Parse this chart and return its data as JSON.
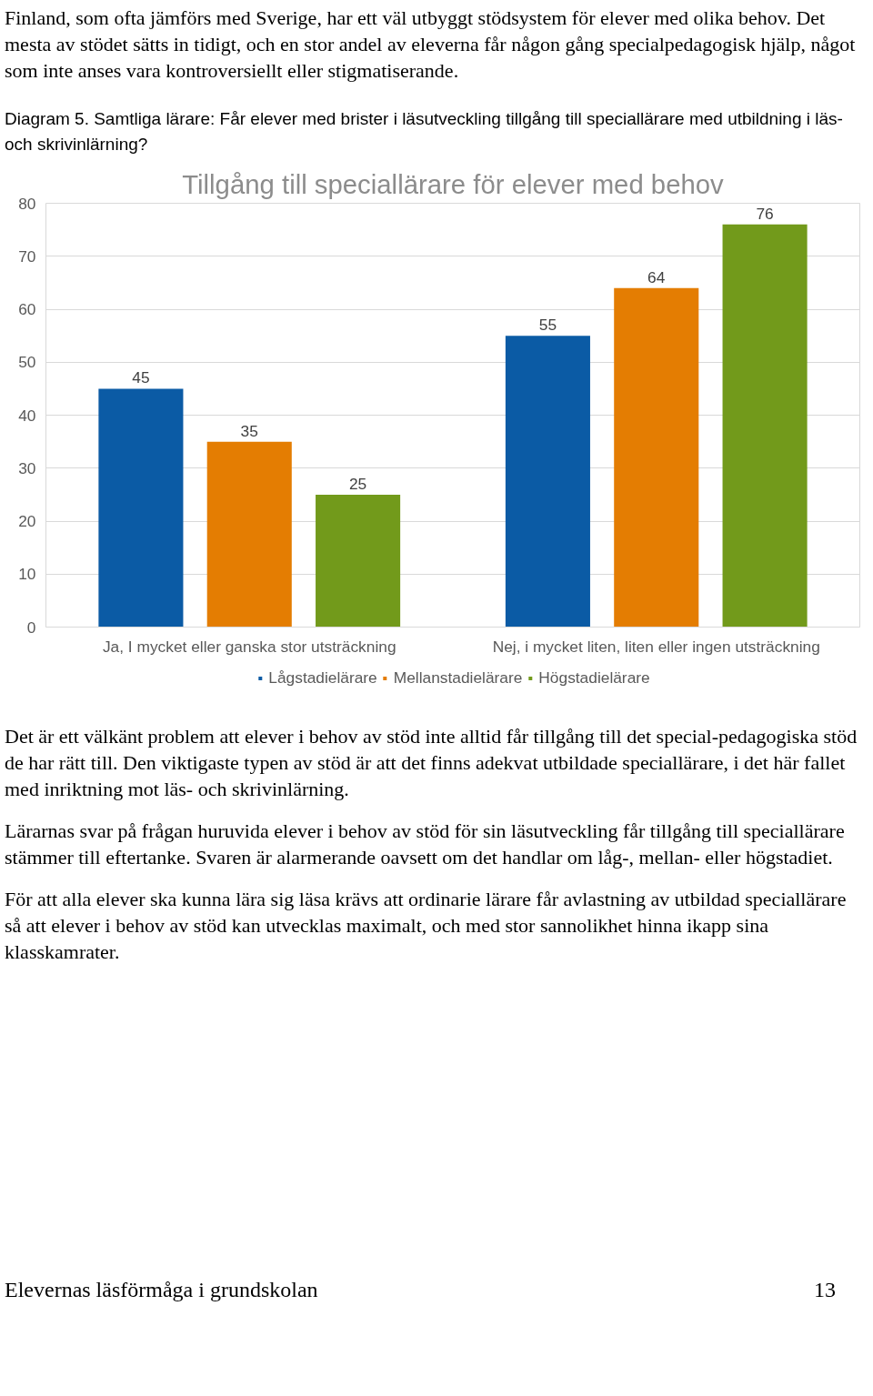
{
  "chart_data": {
    "type": "bar",
    "title": "Tillgång till speciallärare för elever med behov",
    "categories": [
      "Ja, I mycket eller ganska stor utsträckning",
      "Nej, i mycket liten, liten eller ingen utsträckning"
    ],
    "series": [
      {
        "name": "Lågstadielärare",
        "color": "#0b5ba5",
        "values": [
          45,
          55
        ]
      },
      {
        "name": "Mellanstadielärare",
        "color": "#e47d02",
        "values": [
          35,
          64
        ]
      },
      {
        "name": "Högstadielärare",
        "color": "#729a1b",
        "values": [
          25,
          76
        ]
      }
    ],
    "ylim": [
      0,
      80
    ],
    "yticks": [
      0,
      10,
      20,
      30,
      40,
      50,
      60,
      70,
      80
    ],
    "grid": "y",
    "legend": "bottom",
    "data_labels": true,
    "annotations": [
      "Finland, som ofta jämförs med Sverige, har ett väl utbyggt stödsystem för elever med olika behov. Det mesta av stödet sätts in tidigt, och en stor andel av eleverna får någon gång specialpedagogisk hjälp, något som inte anses vara kontroversiellt eller stigmatiserande.",
      "Diagram 5. Samtliga lärare: Får elever med brister i läsutveckling tillgång till speciallärare med utbildning i läs- och skrivinlärning?",
      "Det är ett välkänt problem att elever i behov av stöd inte alltid får tillgång till det special-pedagogiska stöd de har rätt till. Den viktigaste typen av stöd är att det finns adekvat utbildade speciallärare, i det här fallet med inriktning mot läs- och skrivinlärning.",
      "Lärarnas svar på frågan huruvida elever i behov av stöd för sin läsutveckling får tillgång till speciallärare stämmer till eftertanke. Svaren är alarmerande oavsett om det handlar om låg-, mellan- eller högstadiet.",
      "För att alla elever ska kunna lära sig läsa krävs att ordinarie lärare får avlastning av utbildad speciallärare så att elever i behov av stöd kan utvecklas maximalt, och med stor sannolikhet hinna ikapp sina klasskamrater.",
      "Elevernas läsförmåga i grundskolan",
      "13"
    ]
  }
}
